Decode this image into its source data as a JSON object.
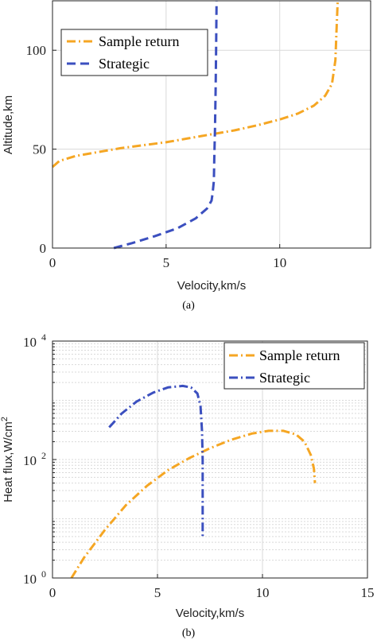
{
  "colors": {
    "sample_return": "#F5A623",
    "strategic": "#3B4FBF",
    "grid": "#d9d9d9",
    "axis": "#222222"
  },
  "chart_data": [
    {
      "type": "line",
      "caption": "(a)",
      "xlabel": "Velocity,km/s",
      "ylabel": "Altitude,km",
      "xlim": [
        0,
        14
      ],
      "ylim": [
        0,
        125
      ],
      "x_ticks": [
        "0",
        "5",
        "10"
      ],
      "x_tick_values": [
        0,
        5,
        10
      ],
      "y_ticks": [
        "0",
        "50",
        "100"
      ],
      "y_tick_values": [
        0,
        50,
        100
      ],
      "y_scale": "linear",
      "grid": true,
      "legend_position": "top-left",
      "series": [
        {
          "name": "Sample return",
          "style": "dash-dot",
          "color_key": "sample_return",
          "points": [
            [
              0.0,
              41
            ],
            [
              0.3,
              44
            ],
            [
              1.0,
              46.5
            ],
            [
              2.0,
              48.5
            ],
            [
              3.0,
              50.5
            ],
            [
              4.0,
              52
            ],
            [
              5.0,
              53.5
            ],
            [
              6.0,
              55.5
            ],
            [
              7.0,
              57.5
            ],
            [
              8.0,
              59.5
            ],
            [
              9.0,
              62
            ],
            [
              10.0,
              65
            ],
            [
              10.8,
              68
            ],
            [
              11.5,
              72
            ],
            [
              12.0,
              77
            ],
            [
              12.3,
              83
            ],
            [
              12.45,
              95
            ],
            [
              12.5,
              110
            ],
            [
              12.55,
              125
            ]
          ]
        },
        {
          "name": "Strategic",
          "style": "dashed",
          "color_key": "strategic",
          "points": [
            [
              2.7,
              0
            ],
            [
              3.5,
              2.5
            ],
            [
              4.5,
              6
            ],
            [
              5.5,
              10
            ],
            [
              6.3,
              15
            ],
            [
              6.8,
              20
            ],
            [
              7.0,
              24
            ],
            [
              7.05,
              28
            ],
            [
              7.1,
              34
            ],
            [
              7.12,
              45
            ],
            [
              7.15,
              60
            ],
            [
              7.18,
              80
            ],
            [
              7.2,
              100
            ],
            [
              7.22,
              125
            ]
          ]
        }
      ]
    },
    {
      "type": "line",
      "caption": "(b)",
      "xlabel": "Velocity,km/s",
      "ylabel": "Heat flux,W/cm",
      "ylabel_sup": "2",
      "xlim": [
        0,
        15
      ],
      "ylim": [
        1,
        10000
      ],
      "x_ticks": [
        "0",
        "5",
        "10",
        "15"
      ],
      "x_tick_values": [
        0,
        5,
        10,
        15
      ],
      "y_ticks": [
        {
          "base": "10",
          "exp": "0",
          "value": 1
        },
        {
          "base": "10",
          "exp": "2",
          "value": 100
        },
        {
          "base": "10",
          "exp": "4",
          "value": 10000
        }
      ],
      "y_scale": "log",
      "grid": true,
      "legend_position": "top-right",
      "series": [
        {
          "name": "Sample return",
          "style": "dash-dot",
          "color_key": "sample_return",
          "points": [
            [
              0.9,
              1.0
            ],
            [
              1.5,
              2.2
            ],
            [
              2.5,
              6.5
            ],
            [
              3.5,
              17
            ],
            [
              4.5,
              36
            ],
            [
              5.5,
              66
            ],
            [
              6.5,
              105
            ],
            [
              7.5,
              155
            ],
            [
              8.5,
              215
            ],
            [
              9.5,
              275
            ],
            [
              10.3,
              305
            ],
            [
              11.0,
              305
            ],
            [
              11.6,
              265
            ],
            [
              12.0,
              200
            ],
            [
              12.3,
              120
            ],
            [
              12.45,
              70
            ],
            [
              12.5,
              40
            ]
          ]
        },
        {
          "name": "Strategic",
          "style": "dash-dot",
          "color_key": "strategic",
          "points": [
            [
              2.7,
              350
            ],
            [
              3.3,
              600
            ],
            [
              4.0,
              950
            ],
            [
              4.8,
              1350
            ],
            [
              5.5,
              1650
            ],
            [
              6.2,
              1750
            ],
            [
              6.6,
              1650
            ],
            [
              6.9,
              1300
            ],
            [
              7.05,
              800
            ],
            [
              7.12,
              300
            ],
            [
              7.15,
              100
            ],
            [
              7.15,
              30
            ],
            [
              7.15,
              5
            ]
          ]
        }
      ]
    }
  ]
}
